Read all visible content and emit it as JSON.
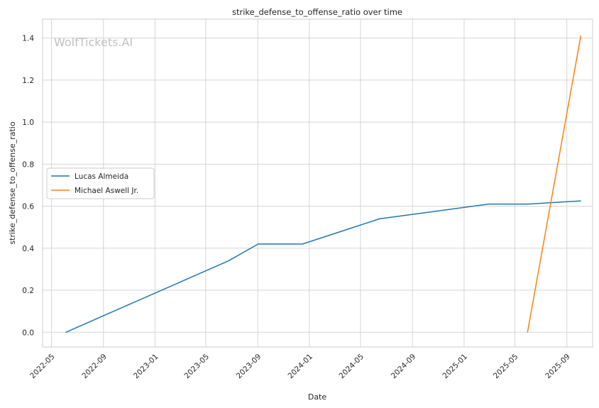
{
  "chart_data": {
    "type": "line",
    "title": "strike_defense_to_offense_ratio over time",
    "xlabel": "Date",
    "ylabel": "strike_defense_to_offense_ratio",
    "watermark": "WolfTickets.AI",
    "x_ticks": [
      "2022-05",
      "2022-09",
      "2023-01",
      "2023-05",
      "2023-09",
      "2024-01",
      "2024-05",
      "2024-09",
      "2025-01",
      "2025-05",
      "2025-09"
    ],
    "y_ticks": [
      "0.0",
      "0.2",
      "0.4",
      "0.6",
      "0.8",
      "1.0",
      "1.2",
      "1.4"
    ],
    "xlim": [
      "2022-04-10",
      "2025-11-01"
    ],
    "ylim": [
      -0.07,
      1.49
    ],
    "grid": true,
    "legend_position": "center-left",
    "series": [
      {
        "name": "Lucas Almeida",
        "color": "#1f77b4",
        "points": [
          {
            "x": "2022-06-04",
            "y": 0.0
          },
          {
            "x": "2023-06-24",
            "y": 0.34
          },
          {
            "x": "2023-09-02",
            "y": 0.42
          },
          {
            "x": "2023-12-16",
            "y": 0.42
          },
          {
            "x": "2024-06-15",
            "y": 0.54
          },
          {
            "x": "2025-02-28",
            "y": 0.61
          },
          {
            "x": "2025-05-31",
            "y": 0.61
          },
          {
            "x": "2025-10-04",
            "y": 0.625
          }
        ]
      },
      {
        "name": "Michael Aswell Jr.",
        "color": "#ff7f0e",
        "points": [
          {
            "x": "2025-05-31",
            "y": 0.0
          },
          {
            "x": "2025-10-04",
            "y": 1.41
          }
        ]
      }
    ]
  }
}
